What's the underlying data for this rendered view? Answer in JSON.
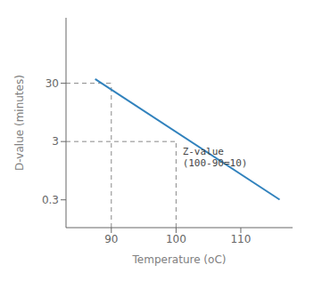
{
  "chart_data": {
    "type": "line",
    "xlabel": "Temperature (oC)",
    "ylabel": "D-value (minutes)",
    "x": [
      87.5,
      116
    ],
    "values": [
      35.48133892335755,
      0.30199517204020165
    ],
    "log": "y",
    "xlim": [
      83,
      118
    ],
    "xticks": [
      90,
      100,
      110
    ],
    "ylim": [
      0.1,
      398.1071705534973
    ],
    "yticks": [
      0.3,
      3,
      30
    ],
    "grid": false,
    "reference_lines": [
      {
        "x": [
          90,
          90
        ],
        "y": [
          0.1,
          30
        ],
        "line_style": "dashed"
      },
      {
        "x": [
          100,
          100
        ],
        "y": [
          0.1,
          3
        ],
        "line_style": "dashed"
      },
      {
        "x": [
          83,
          90
        ],
        "y": [
          30,
          30
        ],
        "line_style": "dashed"
      },
      {
        "x": [
          83,
          100
        ],
        "y": [
          3,
          3
        ],
        "line_style": "dashed"
      }
    ],
    "annotations": [
      {
        "text": "Z-value\n(100-90=10)",
        "x": 101,
        "y": 2.5
      }
    ]
  }
}
